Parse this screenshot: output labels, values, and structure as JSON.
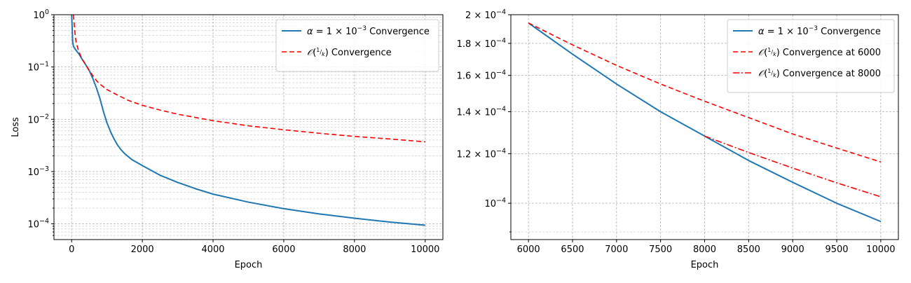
{
  "chart_data": [
    {
      "type": "line",
      "yscale": "log",
      "xlabel": "Epoch",
      "ylabel": "Loss",
      "xlim": [
        -500,
        10500
      ],
      "ylim": [
        5e-05,
        1
      ],
      "xticks": [
        0,
        2000,
        4000,
        6000,
        8000,
        10000
      ],
      "xtick_labels": [
        "0",
        "2000",
        "4000",
        "6000",
        "8000",
        "10000"
      ],
      "yticks": [
        0.0001,
        0.001,
        0.01,
        0.1,
        1
      ],
      "ytick_labels": [
        "10^-4",
        "10^-3",
        "10^-2",
        "10^-1",
        "10^0"
      ],
      "grid": true,
      "legend_position": "top-right",
      "series": [
        {
          "name": "α = 1 × 10^-3 Convergence",
          "color": "#1f77b4",
          "style": "solid",
          "x": [
            0,
            10,
            20,
            30,
            50,
            100,
            200,
            300,
            400,
            500,
            600,
            700,
            800,
            900,
            1000,
            1100,
            1200,
            1300,
            1400,
            1500,
            1700,
            2000,
            2500,
            3000,
            3500,
            4000,
            5000,
            6000,
            7000,
            8000,
            9000,
            10000
          ],
          "y": [
            1.0,
            0.7,
            0.45,
            0.3,
            0.25,
            0.22,
            0.18,
            0.14,
            0.11,
            0.085,
            0.06,
            0.04,
            0.025,
            0.014,
            0.0085,
            0.0058,
            0.0042,
            0.0032,
            0.0026,
            0.0022,
            0.0017,
            0.0013,
            0.00085,
            0.00062,
            0.00047,
            0.00037,
            0.00026,
            0.000195,
            0.000155,
            0.000128,
            0.000108,
            9.4e-05
          ]
        },
        {
          "name": "O(1/k) Convergence",
          "color": "#ff0000",
          "style": "dashed",
          "x": [
            50,
            70,
            100,
            130,
            200,
            300,
            400,
            500,
            600,
            700,
            800,
            1000,
            1300,
            1600,
            2000,
            2500,
            3000,
            4000,
            5000,
            6000,
            7000,
            8000,
            9000,
            10000
          ],
          "y": [
            1.0,
            0.7,
            0.4,
            0.29,
            0.2,
            0.14,
            0.11,
            0.085,
            0.068,
            0.055,
            0.047,
            0.037,
            0.029,
            0.023,
            0.0185,
            0.015,
            0.0125,
            0.0094,
            0.0075,
            0.0063,
            0.0054,
            0.0047,
            0.0042,
            0.0037
          ]
        }
      ]
    },
    {
      "type": "line",
      "yscale": "log",
      "xlabel": "Epoch",
      "ylabel": "",
      "xlim": [
        5800,
        10200
      ],
      "ylim": [
        8.75e-05,
        0.0002
      ],
      "xticks": [
        6000,
        6500,
        7000,
        7500,
        8000,
        8500,
        9000,
        9500,
        10000
      ],
      "xtick_labels": [
        "6000",
        "6500",
        "7000",
        "7500",
        "8000",
        "8500",
        "9000",
        "9500",
        "10000"
      ],
      "yticks": [
        0.0001,
        0.00012,
        0.00014,
        0.00016,
        0.00018,
        0.0002
      ],
      "ytick_labels": [
        "10^-4",
        "1.2 × 10^-4",
        "1.4 × 10^-4",
        "1.6 × 10^-4",
        "1.8 × 10^-4",
        "2 × 10^-4"
      ],
      "grid": true,
      "legend_position": "top-right",
      "series": [
        {
          "name": "α = 1 × 10^-3 Convergence",
          "color": "#1f77b4",
          "style": "solid",
          "x": [
            6000,
            6500,
            7000,
            7500,
            8000,
            8500,
            9000,
            9500,
            10000
          ],
          "y": [
            0.000194,
            0.000173,
            0.000155,
            0.00014,
            0.000128,
            0.000117,
            0.000108,
            0.0001,
            9.35e-05
          ]
        },
        {
          "name": "O(1/k) Convergence at 6000",
          "color": "#ff0000",
          "style": "dashed",
          "x": [
            6000,
            6500,
            7000,
            7500,
            8000,
            8500,
            9000,
            9500,
            10000
          ],
          "y": [
            0.000194,
            0.000179,
            0.000166,
            0.000155,
            0.0001455,
            0.000137,
            0.000129,
            0.0001225,
            0.0001164
          ]
        },
        {
          "name": "O(1/k) Convergence at 8000",
          "color": "#ff0000",
          "style": "dashdot",
          "x": [
            8000,
            8500,
            9000,
            9500,
            10000
          ],
          "y": [
            0.000128,
            0.0001205,
            0.0001138,
            0.0001078,
            0.0001024
          ]
        }
      ]
    }
  ]
}
